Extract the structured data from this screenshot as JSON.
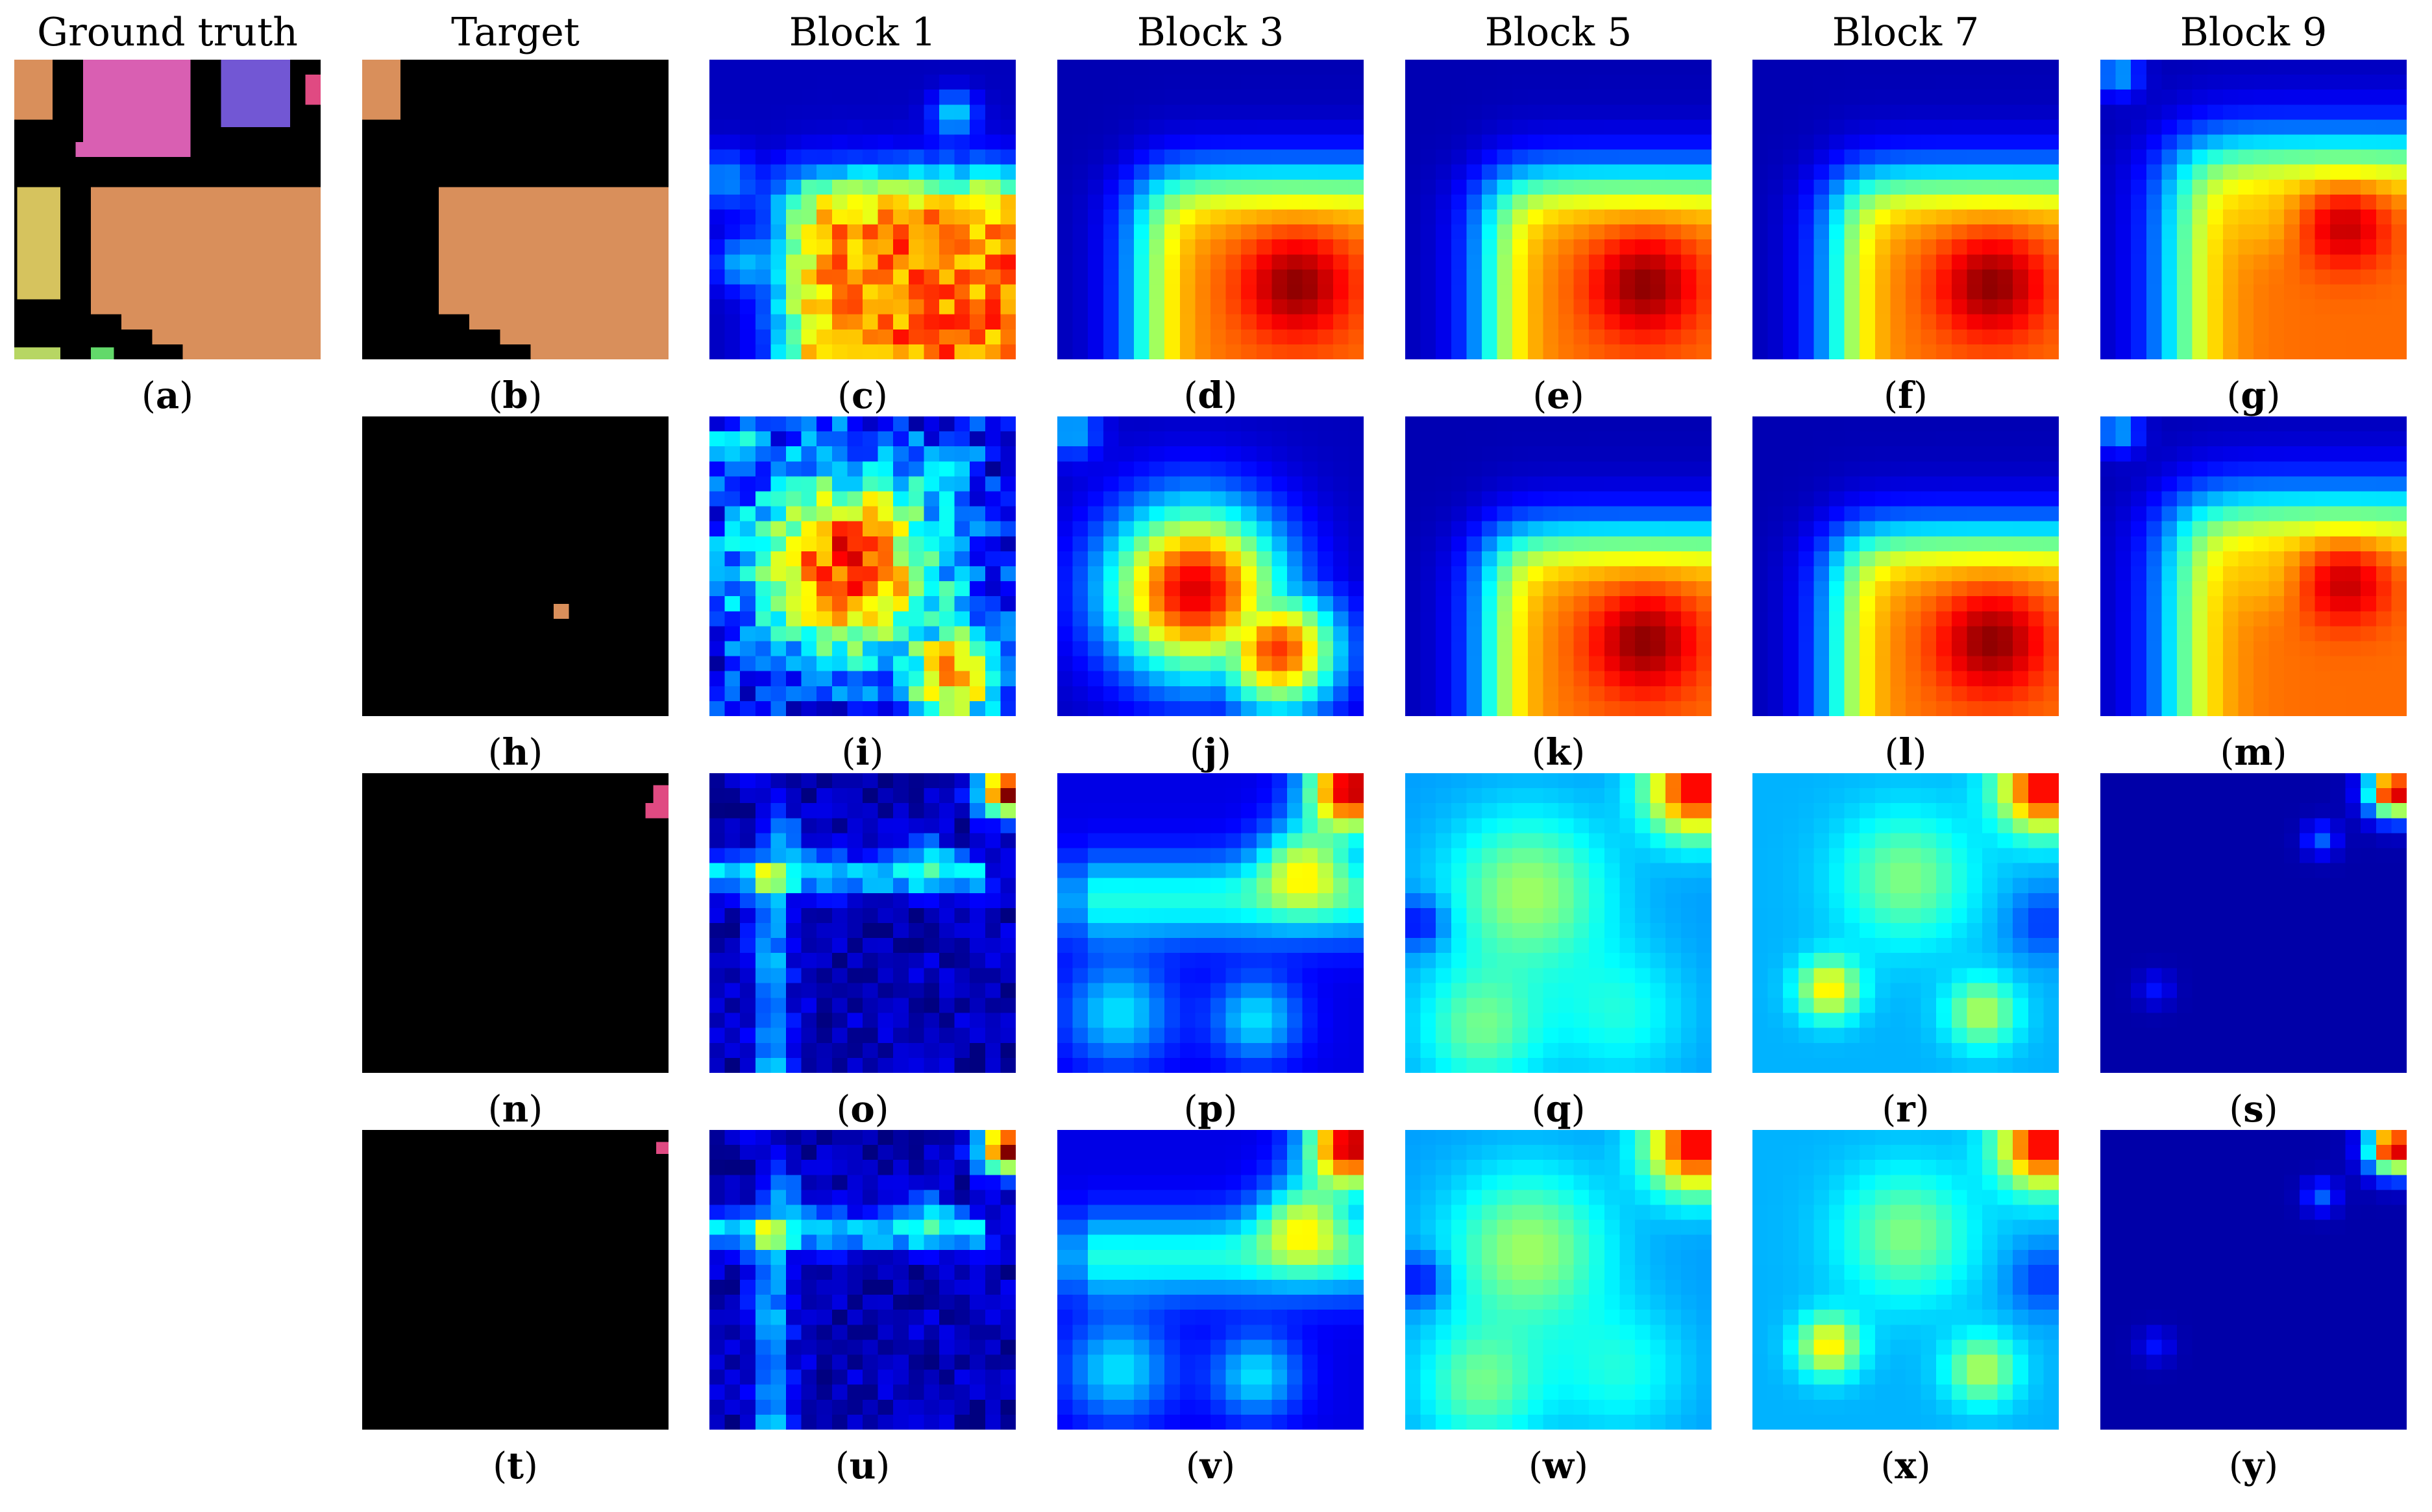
{
  "headers": [
    "Ground truth",
    "Target",
    "Block 1",
    "Block 3",
    "Block 5",
    "Block 7",
    "Block 9"
  ],
  "rows": [
    {
      "panels": [
        {
          "col": 0,
          "letter": "a",
          "kind": "mask",
          "mask": "ground_truth"
        },
        {
          "col": 1,
          "letter": "b",
          "kind": "mask",
          "mask": "target_orange_region"
        },
        {
          "col": 2,
          "letter": "c",
          "kind": "heatmap",
          "pattern": "block1_region"
        },
        {
          "col": 3,
          "letter": "d",
          "kind": "heatmap",
          "pattern": "region"
        },
        {
          "col": 4,
          "letter": "e",
          "kind": "heatmap",
          "pattern": "region"
        },
        {
          "col": 5,
          "letter": "f",
          "kind": "heatmap",
          "pattern": "region"
        },
        {
          "col": 6,
          "letter": "g",
          "kind": "heatmap",
          "pattern": "block9_region"
        }
      ]
    },
    {
      "panels": [
        {
          "col": 1,
          "letter": "h",
          "kind": "mask",
          "mask": "single_orange_pixel"
        },
        {
          "col": 2,
          "letter": "i",
          "kind": "heatmap",
          "pattern": "block1_blob"
        },
        {
          "col": 3,
          "letter": "j",
          "kind": "heatmap",
          "pattern": "blob"
        },
        {
          "col": 4,
          "letter": "k",
          "kind": "heatmap",
          "pattern": "region"
        },
        {
          "col": 5,
          "letter": "l",
          "kind": "heatmap",
          "pattern": "region"
        },
        {
          "col": 6,
          "letter": "m",
          "kind": "heatmap",
          "pattern": "block9_region"
        }
      ]
    },
    {
      "panels": [
        {
          "col": 1,
          "letter": "n",
          "kind": "mask",
          "mask": "pink_corner_large"
        },
        {
          "col": 2,
          "letter": "o",
          "kind": "heatmap",
          "pattern": "block1_corner"
        },
        {
          "col": 3,
          "letter": "p",
          "kind": "heatmap",
          "pattern": "corner_mid"
        },
        {
          "col": 4,
          "letter": "q",
          "kind": "heatmap",
          "pattern": "corner_wide"
        },
        {
          "col": 5,
          "letter": "r",
          "kind": "heatmap",
          "pattern": "corner_wide_left"
        },
        {
          "col": 6,
          "letter": "s",
          "kind": "heatmap",
          "pattern": "corner_tight"
        }
      ]
    },
    {
      "panels": [
        {
          "col": 1,
          "letter": "t",
          "kind": "mask",
          "mask": "pink_corner_small"
        },
        {
          "col": 2,
          "letter": "u",
          "kind": "heatmap",
          "pattern": "block1_corner"
        },
        {
          "col": 3,
          "letter": "v",
          "kind": "heatmap",
          "pattern": "corner_mid"
        },
        {
          "col": 4,
          "letter": "w",
          "kind": "heatmap",
          "pattern": "corner_wide"
        },
        {
          "col": 5,
          "letter": "x",
          "kind": "heatmap",
          "pattern": "corner_wide_left"
        },
        {
          "col": 6,
          "letter": "y",
          "kind": "heatmap",
          "pattern": "corner_tight"
        }
      ]
    }
  ],
  "colors": {
    "background": "#000000",
    "orange": "#d98f5b",
    "pink": "#d95fb2",
    "purple": "#7257d4",
    "yellow": "#d6c35e",
    "green": "#62d96a",
    "lime": "#b7d663",
    "magenta": "#e04a82",
    "heat_low": "#00008f",
    "heat_high": "#800000"
  }
}
